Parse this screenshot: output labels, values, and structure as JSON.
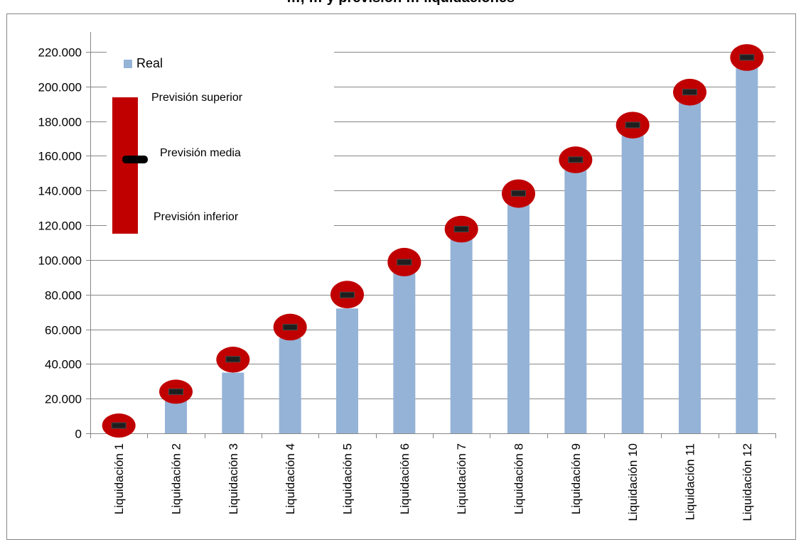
{
  "chart_data": {
    "type": "bar",
    "title": "…, … y previsión … liquidaciones",
    "categories": [
      "Liquidación 1",
      "Liquidación 2",
      "Liquidación 3",
      "Liquidación 4",
      "Liquidación 5",
      "Liquidación 6",
      "Liquidación 7",
      "Liquidación 8",
      "Liquidación 9",
      "Liquidación 10",
      "Liquidación 11",
      "Liquidación 12"
    ],
    "series": [
      {
        "name": "Real",
        "values": [
          2000,
          20000,
          35000,
          55000,
          72000,
          93000,
          112000,
          132000,
          152000,
          172000,
          192000,
          212000
        ],
        "color": "#95b3d7"
      },
      {
        "name": "Previsión superior",
        "values": [
          9000,
          28500,
          47500,
          66500,
          85500,
          104500,
          123000,
          144000,
          163000,
          183000,
          202000,
          222000
        ],
        "color": "#c00000"
      },
      {
        "name": "Previsión media",
        "values": [
          4500,
          24000,
          42700,
          61200,
          79800,
          98700,
          117800,
          138400,
          157800,
          177800,
          196800,
          216800
        ],
        "color": "#000000"
      },
      {
        "name": "Previsión inferior",
        "values": [
          0,
          19500,
          37500,
          56000,
          74500,
          93000,
          112500,
          132500,
          152500,
          172500,
          191500,
          211500
        ],
        "color": "#c00000"
      }
    ],
    "yticks": [
      "0",
      "20.000",
      "40.000",
      "60.000",
      "80.000",
      "100.000",
      "120.000",
      "140.000",
      "160.000",
      "180.000",
      "200.000",
      "220.000"
    ],
    "ylim": [
      0,
      220000
    ],
    "grid": true,
    "legend": {
      "placement": "top-left",
      "real_label": "Real",
      "upper_label": "Previsión superior",
      "mid_label": "Previsión media",
      "lower_label": "Previsión inferior"
    },
    "xlabel": "",
    "ylabel": ""
  }
}
